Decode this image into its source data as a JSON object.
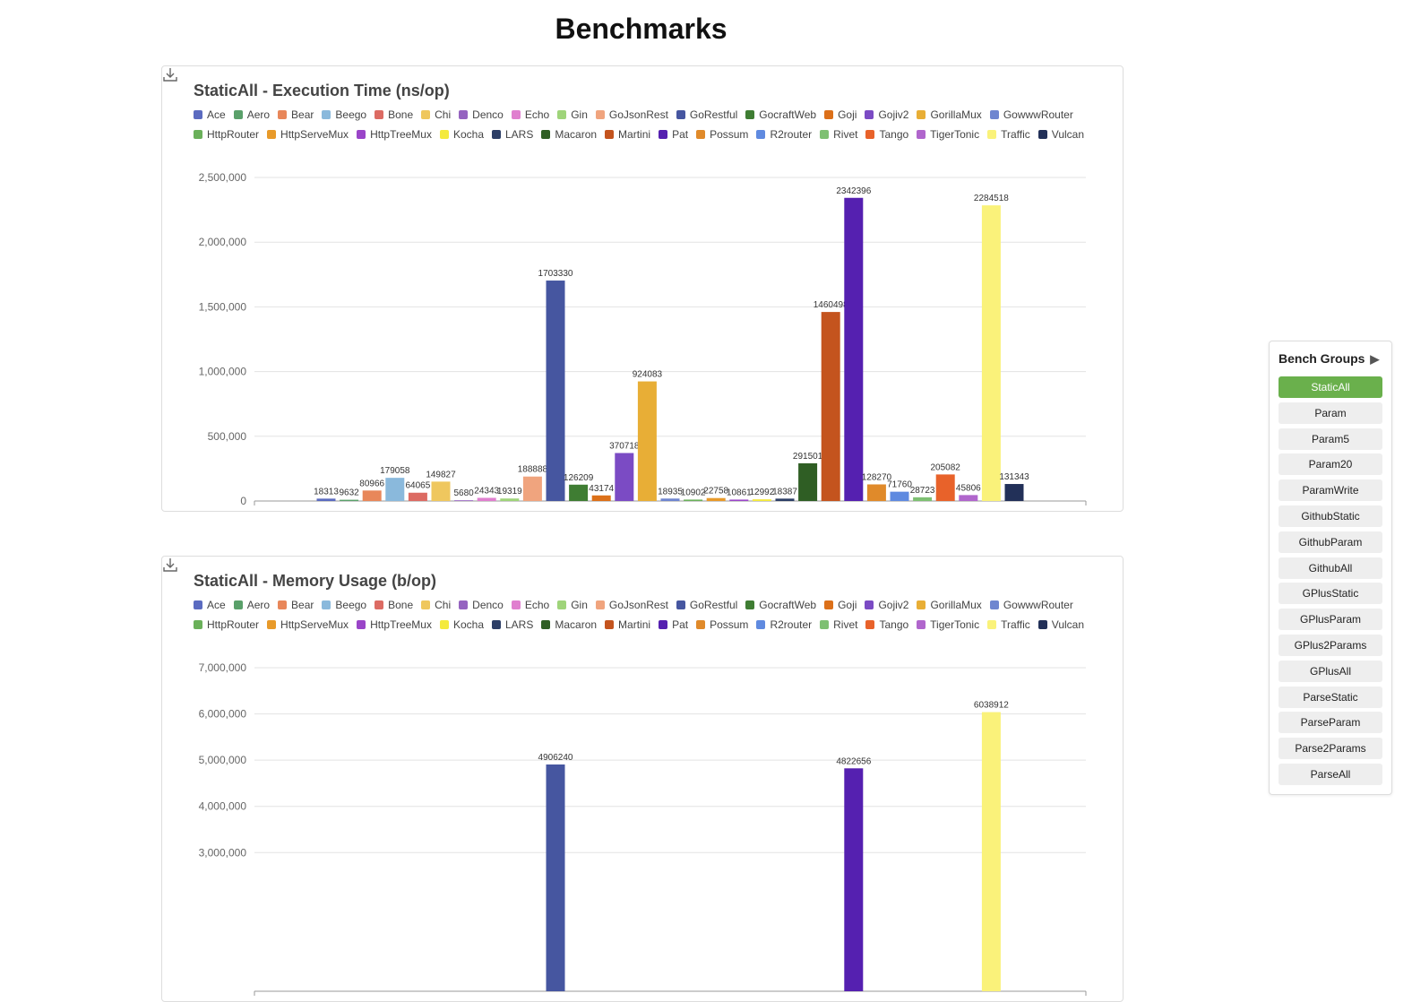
{
  "title": "Benchmarks",
  "chart_data": [
    {
      "type": "bar",
      "title": "StaticAll - Execution Time (ns/op)",
      "grid": true,
      "ylim": [
        0,
        2500000
      ],
      "yticks": [
        0,
        {
          "value": 500000,
          "label": "500,000"
        },
        {
          "value": 1000000,
          "label": "1,000,000"
        },
        {
          "value": 1500000,
          "label": "1,500,000"
        },
        {
          "value": 2000000,
          "label": "2,000,000"
        },
        {
          "value": 2500000,
          "label": "2,500,000"
        }
      ],
      "series": [
        {
          "name": "Ace",
          "color": "#5b6bc0",
          "values": [
            18313
          ]
        },
        {
          "name": "Aero",
          "color": "#5aa06a",
          "values": [
            9632
          ]
        },
        {
          "name": "Bear",
          "color": "#e8875a",
          "values": [
            80966
          ]
        },
        {
          "name": "Beego",
          "color": "#8ab9dc",
          "values": [
            179058
          ]
        },
        {
          "name": "Bone",
          "color": "#dc6b63",
          "values": [
            64065
          ]
        },
        {
          "name": "Chi",
          "color": "#efc75e",
          "values": [
            149827
          ]
        },
        {
          "name": "Denco",
          "color": "#9563c0",
          "values": [
            5680
          ]
        },
        {
          "name": "Echo",
          "color": "#e07fcf",
          "values": [
            24343
          ]
        },
        {
          "name": "Gin",
          "color": "#9fd47a",
          "values": [
            19319
          ]
        },
        {
          "name": "GoJsonRest",
          "color": "#f0a47e",
          "values": [
            188888
          ]
        },
        {
          "name": "GoRestful",
          "color": "#4656a0",
          "values": [
            1703330
          ]
        },
        {
          "name": "GocraftWeb",
          "color": "#3f7d33",
          "values": [
            126209
          ]
        },
        {
          "name": "Goji",
          "color": "#dc7019",
          "values": [
            43174
          ]
        },
        {
          "name": "Gojiv2",
          "color": "#7b4bc4",
          "values": [
            370718
          ]
        },
        {
          "name": "GorillaMux",
          "color": "#e8ae36",
          "values": [
            924083
          ]
        },
        {
          "name": "GowwwRouter",
          "color": "#6f86d0",
          "values": [
            18935
          ]
        },
        {
          "name": "HttpRouter",
          "color": "#6ab05a",
          "values": [
            10902
          ]
        },
        {
          "name": "HttpServeMux",
          "color": "#e89a2a",
          "values": [
            22758
          ]
        },
        {
          "name": "HttpTreeMux",
          "color": "#9a45c8",
          "values": [
            10861
          ]
        },
        {
          "name": "Kocha",
          "color": "#f4ea3c",
          "values": [
            12992
          ]
        },
        {
          "name": "LARS",
          "color": "#2c3e66",
          "values": [
            18387
          ]
        },
        {
          "name": "Macaron",
          "color": "#2f5e24",
          "values": [
            291501
          ]
        },
        {
          "name": "Martini",
          "color": "#c4541e",
          "values": [
            1460498
          ]
        },
        {
          "name": "Pat",
          "color": "#5520b0",
          "values": [
            2342396
          ]
        },
        {
          "name": "Possum",
          "color": "#e08a2a",
          "values": [
            128270
          ]
        },
        {
          "name": "R2router",
          "color": "#5f8ae0",
          "values": [
            71760
          ]
        },
        {
          "name": "Rivet",
          "color": "#7ec072",
          "values": [
            28723
          ]
        },
        {
          "name": "Tango",
          "color": "#e8622a",
          "values": [
            205082
          ]
        },
        {
          "name": "TigerTonic",
          "color": "#b066cc",
          "values": [
            45806
          ]
        },
        {
          "name": "Traffic",
          "color": "#faf27a",
          "values": [
            2284518
          ]
        },
        {
          "name": "Vulcan",
          "color": "#223058",
          "values": [
            131343
          ]
        }
      ]
    },
    {
      "type": "bar",
      "title": "StaticAll - Memory Usage (b/op)",
      "grid": true,
      "ylim": [
        0,
        7000000
      ],
      "yticks": [
        {
          "value": 3000000,
          "label": "3,000,000"
        },
        {
          "value": 4000000,
          "label": "4,000,000"
        },
        {
          "value": 5000000,
          "label": "5,000,000"
        },
        {
          "value": 6000000,
          "label": "6,000,000"
        },
        {
          "value": 7000000,
          "label": "7,000,000"
        }
      ],
      "series": [
        {
          "name": "Ace",
          "color": "#5b6bc0",
          "values": [
            null
          ]
        },
        {
          "name": "Aero",
          "color": "#5aa06a",
          "values": [
            null
          ]
        },
        {
          "name": "Bear",
          "color": "#e8875a",
          "values": [
            null
          ]
        },
        {
          "name": "Beego",
          "color": "#8ab9dc",
          "values": [
            null
          ]
        },
        {
          "name": "Bone",
          "color": "#dc6b63",
          "values": [
            null
          ]
        },
        {
          "name": "Chi",
          "color": "#efc75e",
          "values": [
            null
          ]
        },
        {
          "name": "Denco",
          "color": "#9563c0",
          "values": [
            null
          ]
        },
        {
          "name": "Echo",
          "color": "#e07fcf",
          "values": [
            null
          ]
        },
        {
          "name": "Gin",
          "color": "#9fd47a",
          "values": [
            null
          ]
        },
        {
          "name": "GoJsonRest",
          "color": "#f0a47e",
          "values": [
            null
          ]
        },
        {
          "name": "GoRestful",
          "color": "#4656a0",
          "values": [
            4906240
          ]
        },
        {
          "name": "GocraftWeb",
          "color": "#3f7d33",
          "values": [
            null
          ]
        },
        {
          "name": "Goji",
          "color": "#dc7019",
          "values": [
            null
          ]
        },
        {
          "name": "Gojiv2",
          "color": "#7b4bc4",
          "values": [
            null
          ]
        },
        {
          "name": "GorillaMux",
          "color": "#e8ae36",
          "values": [
            null
          ]
        },
        {
          "name": "GowwwRouter",
          "color": "#6f86d0",
          "values": [
            null
          ]
        },
        {
          "name": "HttpRouter",
          "color": "#6ab05a",
          "values": [
            null
          ]
        },
        {
          "name": "HttpServeMux",
          "color": "#e89a2a",
          "values": [
            null
          ]
        },
        {
          "name": "HttpTreeMux",
          "color": "#9a45c8",
          "values": [
            null
          ]
        },
        {
          "name": "Kocha",
          "color": "#f4ea3c",
          "values": [
            null
          ]
        },
        {
          "name": "LARS",
          "color": "#2c3e66",
          "values": [
            null
          ]
        },
        {
          "name": "Macaron",
          "color": "#2f5e24",
          "values": [
            null
          ]
        },
        {
          "name": "Martini",
          "color": "#c4541e",
          "values": [
            null
          ]
        },
        {
          "name": "Pat",
          "color": "#5520b0",
          "values": [
            4822656
          ]
        },
        {
          "name": "Possum",
          "color": "#e08a2a",
          "values": [
            null
          ]
        },
        {
          "name": "R2router",
          "color": "#5f8ae0",
          "values": [
            null
          ]
        },
        {
          "name": "Rivet",
          "color": "#7ec072",
          "values": [
            null
          ]
        },
        {
          "name": "Tango",
          "color": "#e8622a",
          "values": [
            null
          ]
        },
        {
          "name": "TigerTonic",
          "color": "#b066cc",
          "values": [
            null
          ]
        },
        {
          "name": "Traffic",
          "color": "#faf27a",
          "values": [
            6038912
          ]
        },
        {
          "name": "Vulcan",
          "color": "#223058",
          "values": [
            null
          ]
        }
      ]
    }
  ],
  "sidebar": {
    "title": "Bench Groups",
    "toggle": "▶",
    "active": 0,
    "groups": [
      "StaticAll",
      "Param",
      "Param5",
      "Param20",
      "ParamWrite",
      "GithubStatic",
      "GithubParam",
      "GithubAll",
      "GPlusStatic",
      "GPlusParam",
      "GPlus2Params",
      "GPlusAll",
      "ParseStatic",
      "ParseParam",
      "Parse2Params",
      "ParseAll"
    ]
  }
}
